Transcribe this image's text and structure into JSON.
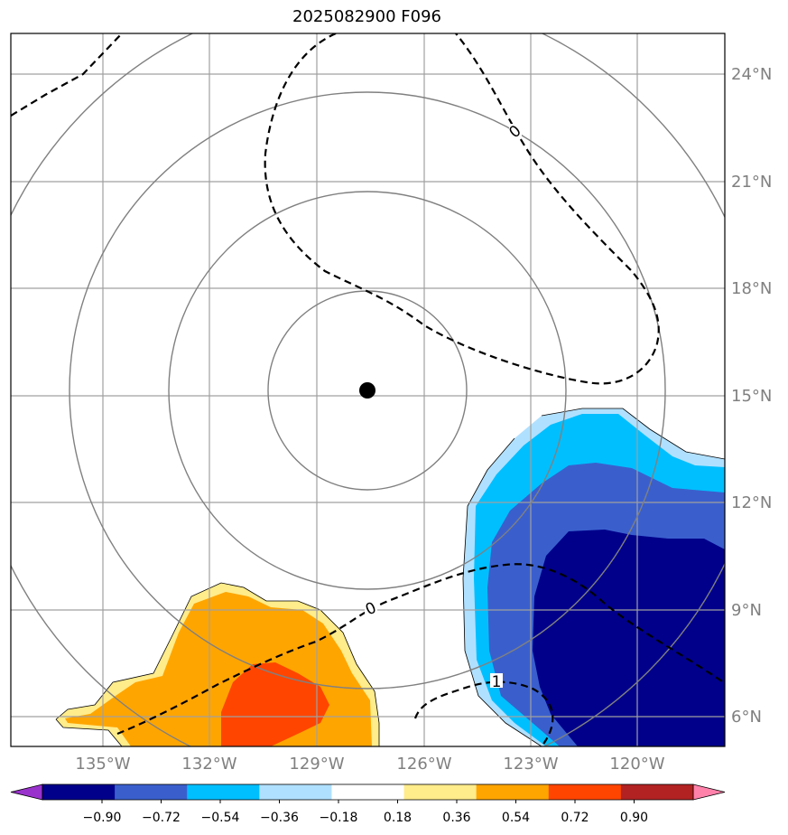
{
  "title": "2025082900 F096",
  "map": {
    "lat_labels": [
      "24°N",
      "21°N",
      "18°N",
      "15°N",
      "12°N",
      "9°N",
      "6°N"
    ],
    "lon_labels": [
      "135°W",
      "132°W",
      "129°W",
      "126°W",
      "123°W",
      "120°W"
    ],
    "center_marker": {
      "lat": 15.2,
      "lon": -127.5
    },
    "contour_labels": [
      "0",
      "0",
      "1"
    ]
  },
  "colorbar": {
    "ticks": [
      "−0.90",
      "−0.72",
      "−0.54",
      "−0.36",
      "−0.18",
      "0.18",
      "0.36",
      "0.54",
      "0.72",
      "0.90"
    ],
    "colors": [
      "#9932cc",
      "#00008b",
      "#3a5fcd",
      "#00bfff",
      "#b0e0ff",
      "#ffffff",
      "#ffec8b",
      "#ffa500",
      "#ff4500",
      "#b22222",
      "#ff82ab"
    ]
  },
  "fills": {
    "blue_outer": "#b0e0ff",
    "blue_mid": "#00bfff",
    "blue_royal": "#3a5fcd",
    "blue_dark": "#00008b",
    "yellow": "#ffec8b",
    "orange": "#ffa500",
    "redorange": "#ff4500"
  }
}
